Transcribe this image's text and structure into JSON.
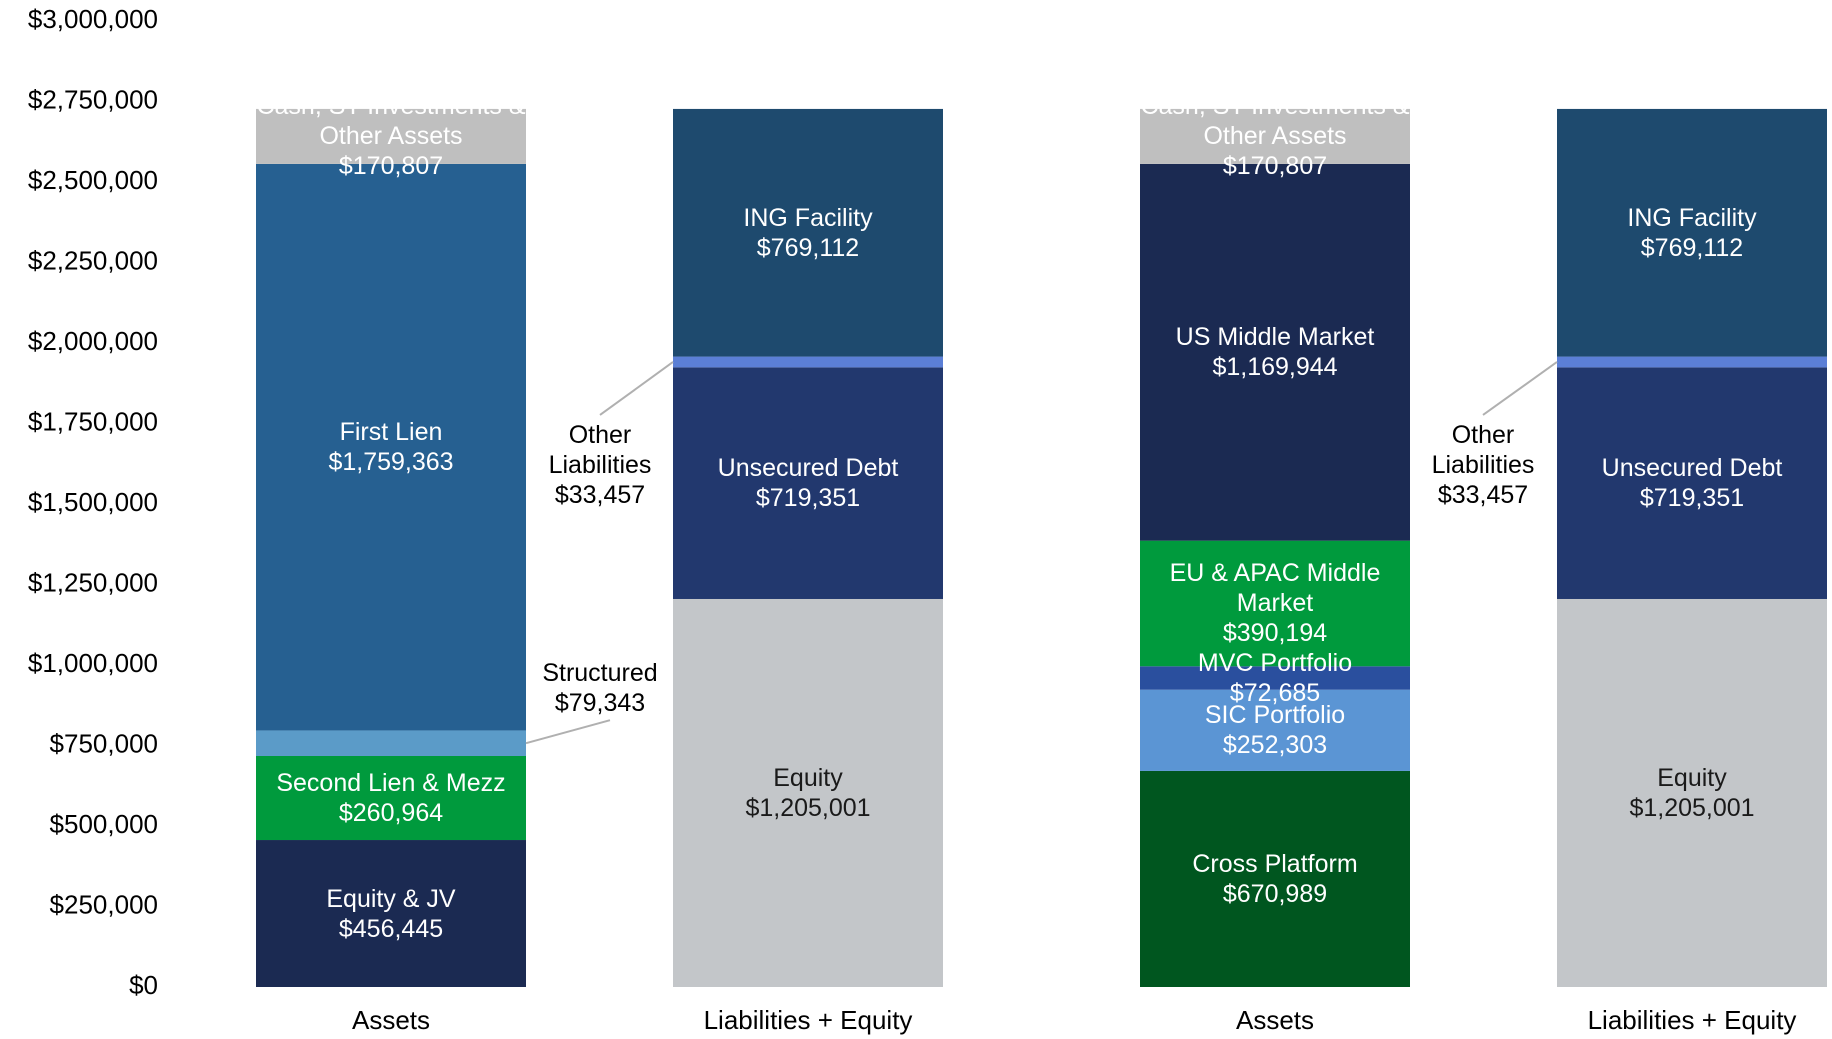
{
  "chart_data": {
    "type": "stacked_bar",
    "categories": [
      "Assets",
      "Liabilities + Equity",
      "Assets",
      "Liabilities + Equity"
    ],
    "ylim": [
      0,
      3000000
    ],
    "yticks": [
      {
        "value": 0,
        "label": "$0"
      },
      {
        "value": 250000,
        "label": "$250,000"
      },
      {
        "value": 500000,
        "label": "$500,000"
      },
      {
        "value": 750000,
        "label": "$750,000"
      },
      {
        "value": 1000000,
        "label": "$1,000,000"
      },
      {
        "value": 1250000,
        "label": "$1,250,000"
      },
      {
        "value": 1500000,
        "label": "$1,500,000"
      },
      {
        "value": 1750000,
        "label": "$1,750,000"
      },
      {
        "value": 2000000,
        "label": "$2,000,000"
      },
      {
        "value": 2250000,
        "label": "$2,250,000"
      },
      {
        "value": 2500000,
        "label": "$2,500,000"
      },
      {
        "value": 2750000,
        "label": "$2,750,000"
      },
      {
        "value": 3000000,
        "label": "$3,000,000"
      }
    ],
    "series": [
      {
        "name": "Equity & JV",
        "color": "#1b2a52",
        "label_color": "#ffffff",
        "values": [
          456445,
          null,
          null,
          null
        ],
        "value_labels": [
          "$456,445",
          null,
          null,
          null
        ]
      },
      {
        "name": "Second Lien & Mezz",
        "color": "#009a3d",
        "label_color": "#ffffff",
        "values": [
          260964,
          null,
          null,
          null
        ],
        "value_labels": [
          "$260,964",
          null,
          null,
          null
        ]
      },
      {
        "name": "Structured",
        "color": "#5b9bc8",
        "label_color": "#000000",
        "label_style": "callout",
        "values": [
          79343,
          null,
          null,
          null
        ],
        "value_labels": [
          "$79,343",
          null,
          null,
          null
        ]
      },
      {
        "name": "First Lien",
        "color": "#266091",
        "label_color": "#ffffff",
        "values": [
          1759363,
          null,
          null,
          null
        ],
        "value_labels": [
          "$1,759,363",
          null,
          null,
          null
        ]
      },
      {
        "name": "Cross Platform",
        "color": "#00561f",
        "label_color": "#ffffff",
        "values": [
          null,
          null,
          670989,
          null
        ],
        "value_labels": [
          null,
          null,
          "$670,989",
          null
        ]
      },
      {
        "name": "SIC Portfolio",
        "color": "#5b95d4",
        "label_color": "#ffffff",
        "values": [
          null,
          null,
          252303,
          null
        ],
        "value_labels": [
          null,
          null,
          "$252,303",
          null
        ]
      },
      {
        "name": "MVC Portfolio",
        "color": "#2a4f9e",
        "label_color": "#ffffff",
        "values": [
          null,
          null,
          72685,
          null
        ],
        "value_labels": [
          null,
          null,
          "$72,685",
          null
        ]
      },
      {
        "name": "EU & APAC Middle Market",
        "color": "#009a3d",
        "label_color": "#ffffff",
        "values": [
          null,
          null,
          390194,
          null
        ],
        "value_labels": [
          null,
          null,
          "$390,194",
          null
        ]
      },
      {
        "name": "US Middle Market",
        "color": "#1b2a52",
        "label_color": "#ffffff",
        "values": [
          null,
          null,
          1169944,
          null
        ],
        "value_labels": [
          null,
          null,
          "$1,169,944",
          null
        ]
      },
      {
        "name": "Equity",
        "color": "#c3c6c9",
        "label_color": "#1a1a1a",
        "values": [
          null,
          1205001,
          null,
          1205001
        ],
        "value_labels": [
          null,
          "$1,205,001",
          null,
          "$1,205,001"
        ]
      },
      {
        "name": "Unsecured Debt",
        "color": "#22386e",
        "label_color": "#ffffff",
        "values": [
          null,
          719351,
          null,
          719351
        ],
        "value_labels": [
          null,
          "$719,351",
          null,
          "$719,351"
        ]
      },
      {
        "name": "Other Liabilities",
        "color": "#5b7fd6",
        "label_color": "#000000",
        "label_style": "callout",
        "values": [
          null,
          33457,
          null,
          33457
        ],
        "value_labels": [
          null,
          "$33,457",
          null,
          "$33,457"
        ]
      },
      {
        "name": "ING Facility",
        "color": "#1e4a6e",
        "label_color": "#ffffff",
        "values": [
          null,
          769112,
          null,
          769112
        ],
        "value_labels": [
          null,
          "$769,112",
          null,
          "$769,112"
        ]
      },
      {
        "name": "Cash, ST Investments & Other Assets",
        "color": "#bfbfbf",
        "label_color": "#ffffff",
        "values": [
          170807,
          null,
          170807,
          null
        ],
        "value_labels": [
          "$170,807",
          null,
          "$170,807",
          null
        ]
      }
    ]
  }
}
